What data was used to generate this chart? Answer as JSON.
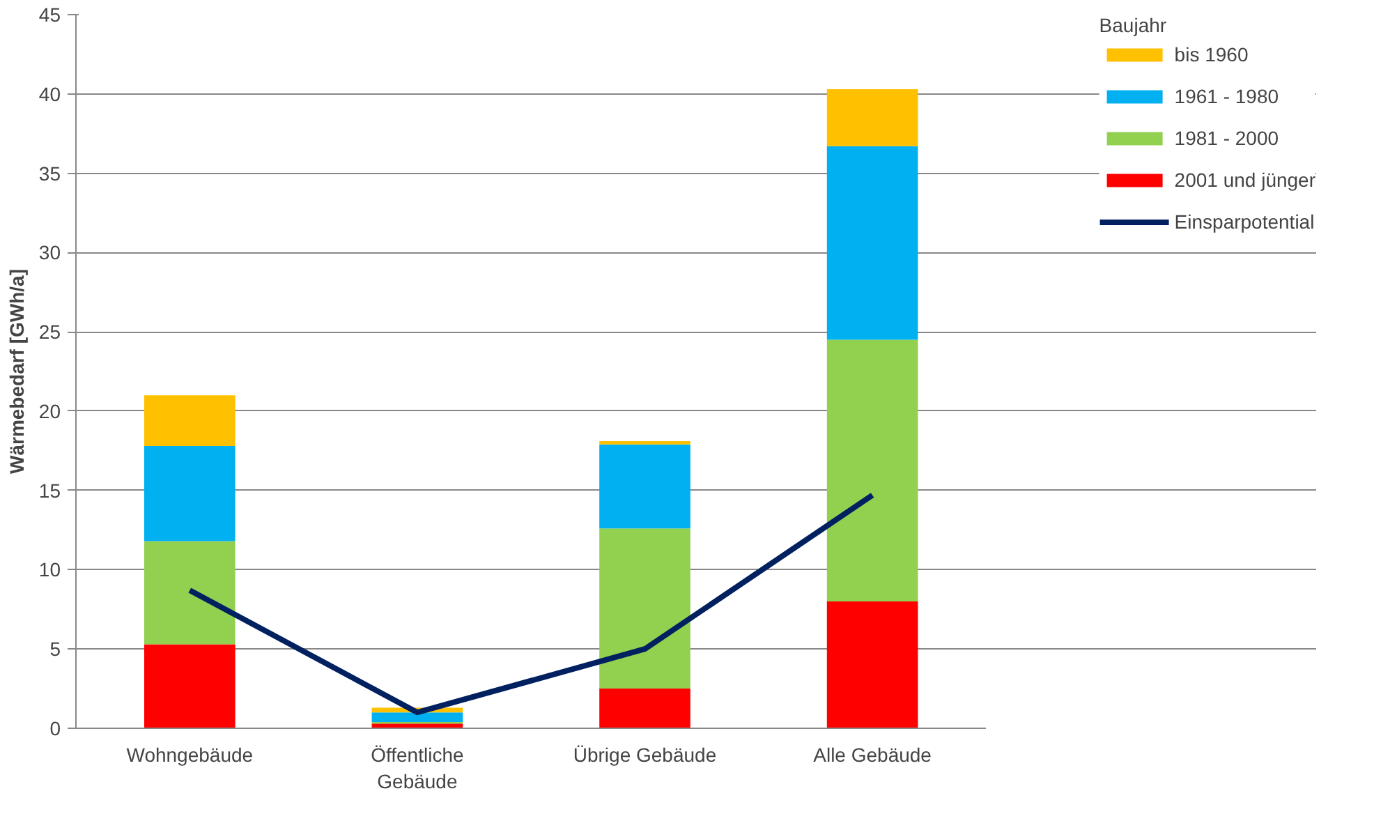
{
  "chart_data": {
    "type": "bar",
    "stacked": true,
    "ylabel": "Wärmebedarf [GWh/a]",
    "categories": [
      "Wohngebäude",
      "Öffentliche Gebäude",
      "Übrige Gebäude",
      "Alle Gebäude"
    ],
    "legend_title": "Baujahr",
    "legend": "right",
    "grid": "y",
    "ylim": [
      0,
      45
    ],
    "yticks": [
      0,
      5,
      10,
      15,
      20,
      25,
      30,
      35,
      40,
      45
    ],
    "series": [
      {
        "name": "2001 und jünger",
        "color": "#ff0000",
        "values": [
          5.3,
          0.3,
          2.5,
          8.0
        ]
      },
      {
        "name": "1981 - 2000",
        "color": "#92d050",
        "values": [
          6.5,
          0.1,
          10.1,
          16.5
        ]
      },
      {
        "name": "1961 - 1980",
        "color": "#00b0f0",
        "values": [
          6.0,
          0.6,
          5.3,
          12.2
        ]
      },
      {
        "name": "bis 1960",
        "color": "#ffc000",
        "values": [
          3.2,
          0.3,
          0.2,
          3.6
        ]
      },
      {
        "name": "Einsparpotential",
        "type": "line",
        "color": "#002060",
        "values": [
          8.7,
          1.0,
          5.0,
          14.7
        ]
      }
    ]
  }
}
